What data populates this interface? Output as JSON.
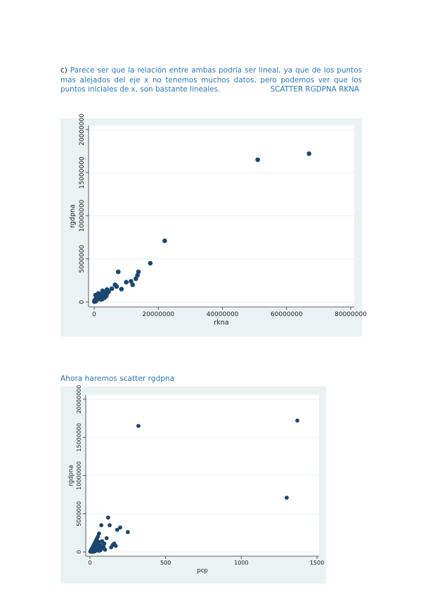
{
  "text": {
    "part_label": "c)",
    "paragraph": "Parece ser que la relación entre ambas podría ser lineal, ya que de los puntos mas alejados del eje x no tenemos muchos datos, pero podemos ver que los puntos iniciales de x, son bastante lineales.",
    "command_1": "SCATTER RGDPNA RKNA",
    "heading_2": "Ahora haremos scatter rgdpna"
  },
  "colors": {
    "text_blue": "#2878b8",
    "marker": "#1a476f",
    "plot_bg": "#eaf2f3",
    "grid": "#eaf2f3"
  },
  "chart_data": [
    {
      "type": "scatter",
      "xlabel": "rkna",
      "ylabel": "rgdpna",
      "xlim": [
        0,
        80000000
      ],
      "ylim": [
        0,
        20000000
      ],
      "x_ticks": [
        0,
        20000000,
        40000000,
        60000000,
        80000000
      ],
      "x_tick_labels": [
        "0",
        "20000000",
        "40000000",
        "60000000",
        "80000000"
      ],
      "y_ticks": [
        0,
        5000000,
        10000000,
        15000000,
        20000000
      ],
      "y_tick_labels": [
        "0",
        "5000000",
        "10000000",
        "15000000",
        "20000000"
      ],
      "grid": true,
      "x": [
        50000,
        100000,
        200000,
        300000,
        400000,
        500000,
        600000,
        800000,
        1000000,
        1200000,
        1500000,
        1800000,
        2000000,
        2200000,
        2500000,
        2800000,
        3000000,
        3500000,
        4000000,
        400000,
        900000,
        1300000,
        1700000,
        2300000,
        2600000,
        3200000,
        3800000,
        4500000,
        1100000,
        2100000,
        1800000,
        2600000,
        3300000,
        4000000,
        5500000,
        6500000,
        7000000,
        7500000,
        8500000,
        10000000,
        11500000,
        12000000,
        13000000,
        13500000,
        13800000,
        17500000,
        22000000,
        51000000,
        67000000
      ],
      "y": [
        50000,
        150000,
        250000,
        80000,
        300000,
        200000,
        120000,
        450000,
        600000,
        350000,
        550000,
        750000,
        400000,
        650000,
        900000,
        500000,
        950000,
        1100000,
        1000000,
        800000,
        300000,
        1000000,
        600000,
        850000,
        350000,
        500000,
        700000,
        1200000,
        450000,
        300000,
        900000,
        1300000,
        800000,
        1450000,
        1550000,
        2000000,
        1800000,
        3500000,
        1500000,
        2300000,
        2400000,
        2000000,
        2700000,
        3100000,
        3500000,
        4500000,
        7100000,
        16500000,
        17200000
      ]
    },
    {
      "type": "scatter",
      "xlabel": "pcp",
      "ylabel": "rgdpna",
      "xlim": [
        0,
        1500
      ],
      "ylim": [
        0,
        20000000
      ],
      "x_ticks": [
        0,
        500,
        1000,
        1500
      ],
      "x_tick_labels": [
        "0",
        "500",
        "1000",
        "1500"
      ],
      "y_ticks": [
        0,
        5000000,
        10000000,
        15000000,
        20000000
      ],
      "y_tick_labels": [
        "0",
        "5000000",
        "10000000",
        "15000000",
        "20000000"
      ],
      "grid": true,
      "x": [
        2,
        5,
        8,
        10,
        12,
        15,
        18,
        20,
        22,
        25,
        28,
        30,
        32,
        35,
        38,
        40,
        42,
        45,
        48,
        50,
        52,
        55,
        58,
        60,
        65,
        70,
        75,
        80,
        85,
        90,
        95,
        100,
        110,
        120,
        130,
        140,
        150,
        160,
        170,
        180,
        200,
        250,
        320,
        1300,
        1370,
        15,
        25,
        35,
        45,
        60,
        70,
        10,
        20,
        30
      ],
      "y": [
        50000,
        150000,
        300000,
        100000,
        450000,
        250000,
        600000,
        200000,
        800000,
        400000,
        1000000,
        550000,
        1200000,
        700000,
        350000,
        1500000,
        900000,
        1700000,
        450000,
        1100000,
        2000000,
        800000,
        1300000,
        2400000,
        600000,
        900000,
        3500000,
        1400000,
        500000,
        700000,
        1100000,
        300000,
        1800000,
        4500000,
        3500000,
        600000,
        900000,
        1100000,
        800000,
        2900000,
        3200000,
        2600000,
        16500000,
        7100000,
        17200000,
        50000,
        80000,
        120000,
        200000,
        150000,
        250000,
        20000,
        30000,
        60000
      ]
    }
  ]
}
